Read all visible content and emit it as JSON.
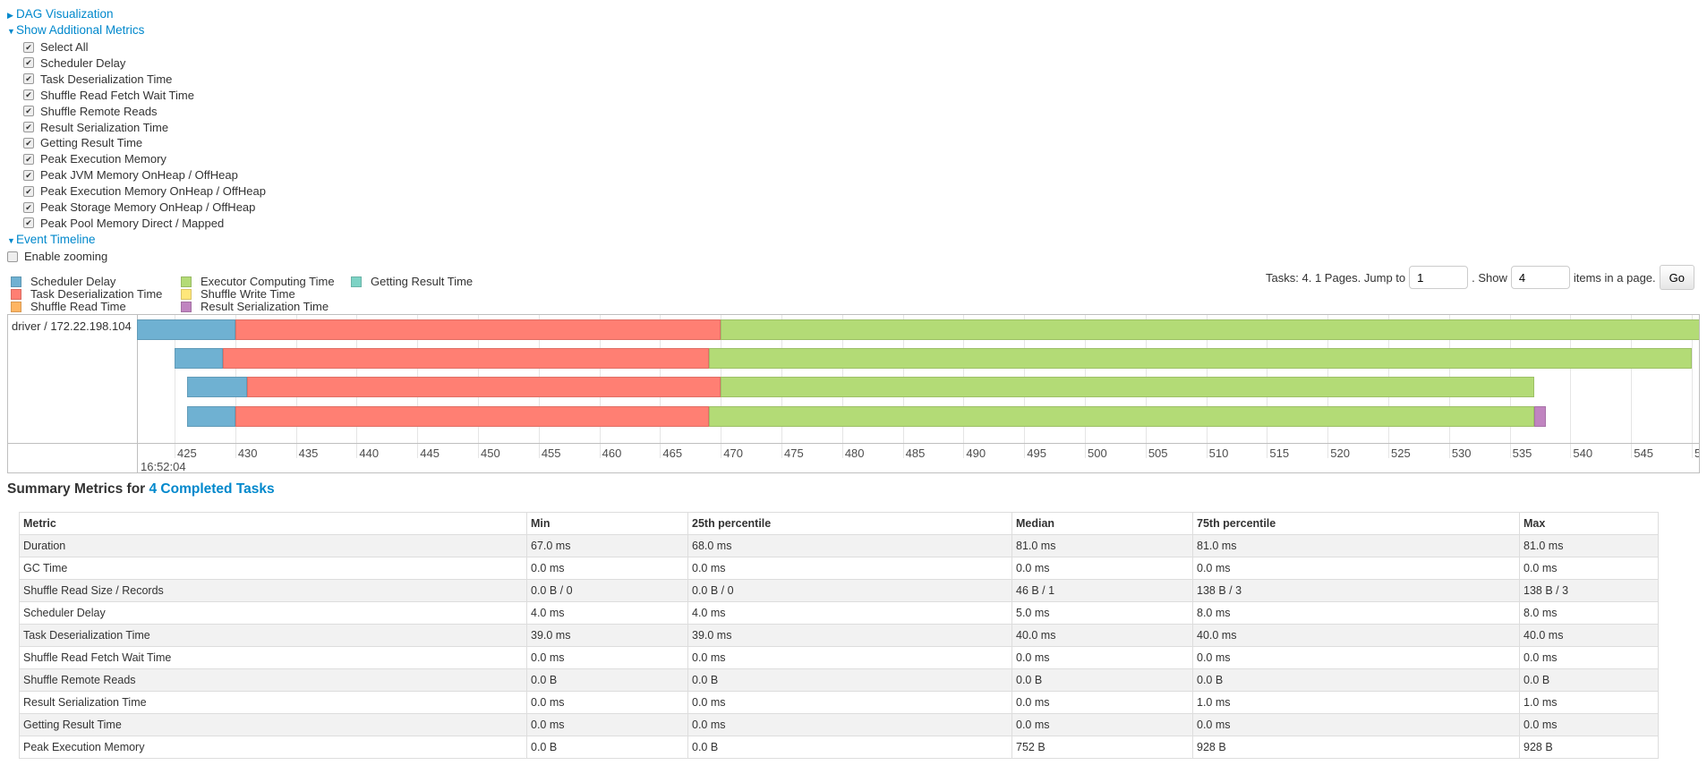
{
  "toggles": {
    "dag": "DAG Visualization",
    "metrics": "Show Additional Metrics",
    "timeline": "Event Timeline"
  },
  "metric_checkboxes": [
    {
      "label": "Select All",
      "checked": true
    },
    {
      "label": "Scheduler Delay",
      "checked": true
    },
    {
      "label": "Task Deserialization Time",
      "checked": true
    },
    {
      "label": "Shuffle Read Fetch Wait Time",
      "checked": true
    },
    {
      "label": "Shuffle Remote Reads",
      "checked": true
    },
    {
      "label": "Result Serialization Time",
      "checked": true
    },
    {
      "label": "Getting Result Time",
      "checked": true
    },
    {
      "label": "Peak Execution Memory",
      "checked": true
    },
    {
      "label": "Peak JVM Memory OnHeap / OffHeap",
      "checked": true
    },
    {
      "label": "Peak Execution Memory OnHeap / OffHeap",
      "checked": true
    },
    {
      "label": "Peak Storage Memory OnHeap / OffHeap",
      "checked": true
    },
    {
      "label": "Peak Pool Memory Direct / Mapped",
      "checked": true
    }
  ],
  "enable_zooming": {
    "label": "Enable zooming",
    "checked": false
  },
  "legend": [
    {
      "label": "Scheduler Delay",
      "color": "#6fb1d2"
    },
    {
      "label": "Task Deserialization Time",
      "color": "#ff7f73"
    },
    {
      "label": "Shuffle Read Time",
      "color": "#ffb562"
    },
    {
      "label": "Executor Computing Time",
      "color": "#b3db76"
    },
    {
      "label": "Shuffle Write Time",
      "color": "#ffe77a"
    },
    {
      "label": "Result Serialization Time",
      "color": "#c084c0"
    },
    {
      "label": "Getting Result Time",
      "color": "#7dd3c5"
    }
  ],
  "pager": {
    "prefix": "Tasks: 4. 1 Pages. Jump to",
    "page": "1",
    "show": ". Show",
    "size": "4",
    "suffix": "items in a page.",
    "go": "Go"
  },
  "timeline": {
    "executor": "driver / 172.22.198.104",
    "date_label": "16:52:04",
    "axis_min_ms": 421.9,
    "axis_max_ms": 550.8,
    "ticks": [
      "425",
      "430",
      "435",
      "440",
      "445",
      "450",
      "455",
      "460",
      "465",
      "470",
      "475",
      "480",
      "485",
      "490",
      "495",
      "500",
      "505",
      "510",
      "515",
      "520",
      "525",
      "530",
      "535",
      "540",
      "545",
      "5"
    ],
    "tasks": [
      {
        "segments": [
          [
            421.9,
            430,
            "#6fb1d2"
          ],
          [
            430,
            470,
            "#ff7f73"
          ],
          [
            470,
            550.8,
            "#b3db76"
          ]
        ]
      },
      {
        "segments": [
          [
            425,
            429,
            "#6fb1d2"
          ],
          [
            429,
            469,
            "#ff7f73"
          ],
          [
            469,
            550,
            "#b3db76"
          ]
        ]
      },
      {
        "segments": [
          [
            426,
            431,
            "#6fb1d2"
          ],
          [
            431,
            470,
            "#ff7f73"
          ],
          [
            470,
            537,
            "#b3db76"
          ]
        ]
      },
      {
        "segments": [
          [
            426,
            430,
            "#6fb1d2"
          ],
          [
            430,
            469,
            "#ff7f73"
          ],
          [
            469,
            537,
            "#b3db76"
          ],
          [
            537,
            538,
            "#c084c0"
          ]
        ]
      }
    ]
  },
  "summary": {
    "title": "Summary Metrics for ",
    "link": "4 Completed Tasks",
    "headers": [
      "Metric",
      "Min",
      "25th percentile",
      "Median",
      "75th percentile",
      "Max"
    ],
    "rows": [
      [
        "Duration",
        "67.0 ms",
        "68.0 ms",
        "81.0 ms",
        "81.0 ms",
        "81.0 ms"
      ],
      [
        "GC Time",
        "0.0 ms",
        "0.0 ms",
        "0.0 ms",
        "0.0 ms",
        "0.0 ms"
      ],
      [
        "Shuffle Read Size / Records",
        "0.0 B / 0",
        "0.0 B / 0",
        "46 B / 1",
        "138 B / 3",
        "138 B / 3"
      ],
      [
        "Scheduler Delay",
        "4.0 ms",
        "4.0 ms",
        "5.0 ms",
        "8.0 ms",
        "8.0 ms"
      ],
      [
        "Task Deserialization Time",
        "39.0 ms",
        "39.0 ms",
        "40.0 ms",
        "40.0 ms",
        "40.0 ms"
      ],
      [
        "Shuffle Read Fetch Wait Time",
        "0.0 ms",
        "0.0 ms",
        "0.0 ms",
        "0.0 ms",
        "0.0 ms"
      ],
      [
        "Shuffle Remote Reads",
        "0.0 B",
        "0.0 B",
        "0.0 B",
        "0.0 B",
        "0.0 B"
      ],
      [
        "Result Serialization Time",
        "0.0 ms",
        "0.0 ms",
        "0.0 ms",
        "1.0 ms",
        "1.0 ms"
      ],
      [
        "Getting Result Time",
        "0.0 ms",
        "0.0 ms",
        "0.0 ms",
        "0.0 ms",
        "0.0 ms"
      ],
      [
        "Peak Execution Memory",
        "0.0 B",
        "0.0 B",
        "752 B",
        "928 B",
        "928 B"
      ]
    ]
  }
}
